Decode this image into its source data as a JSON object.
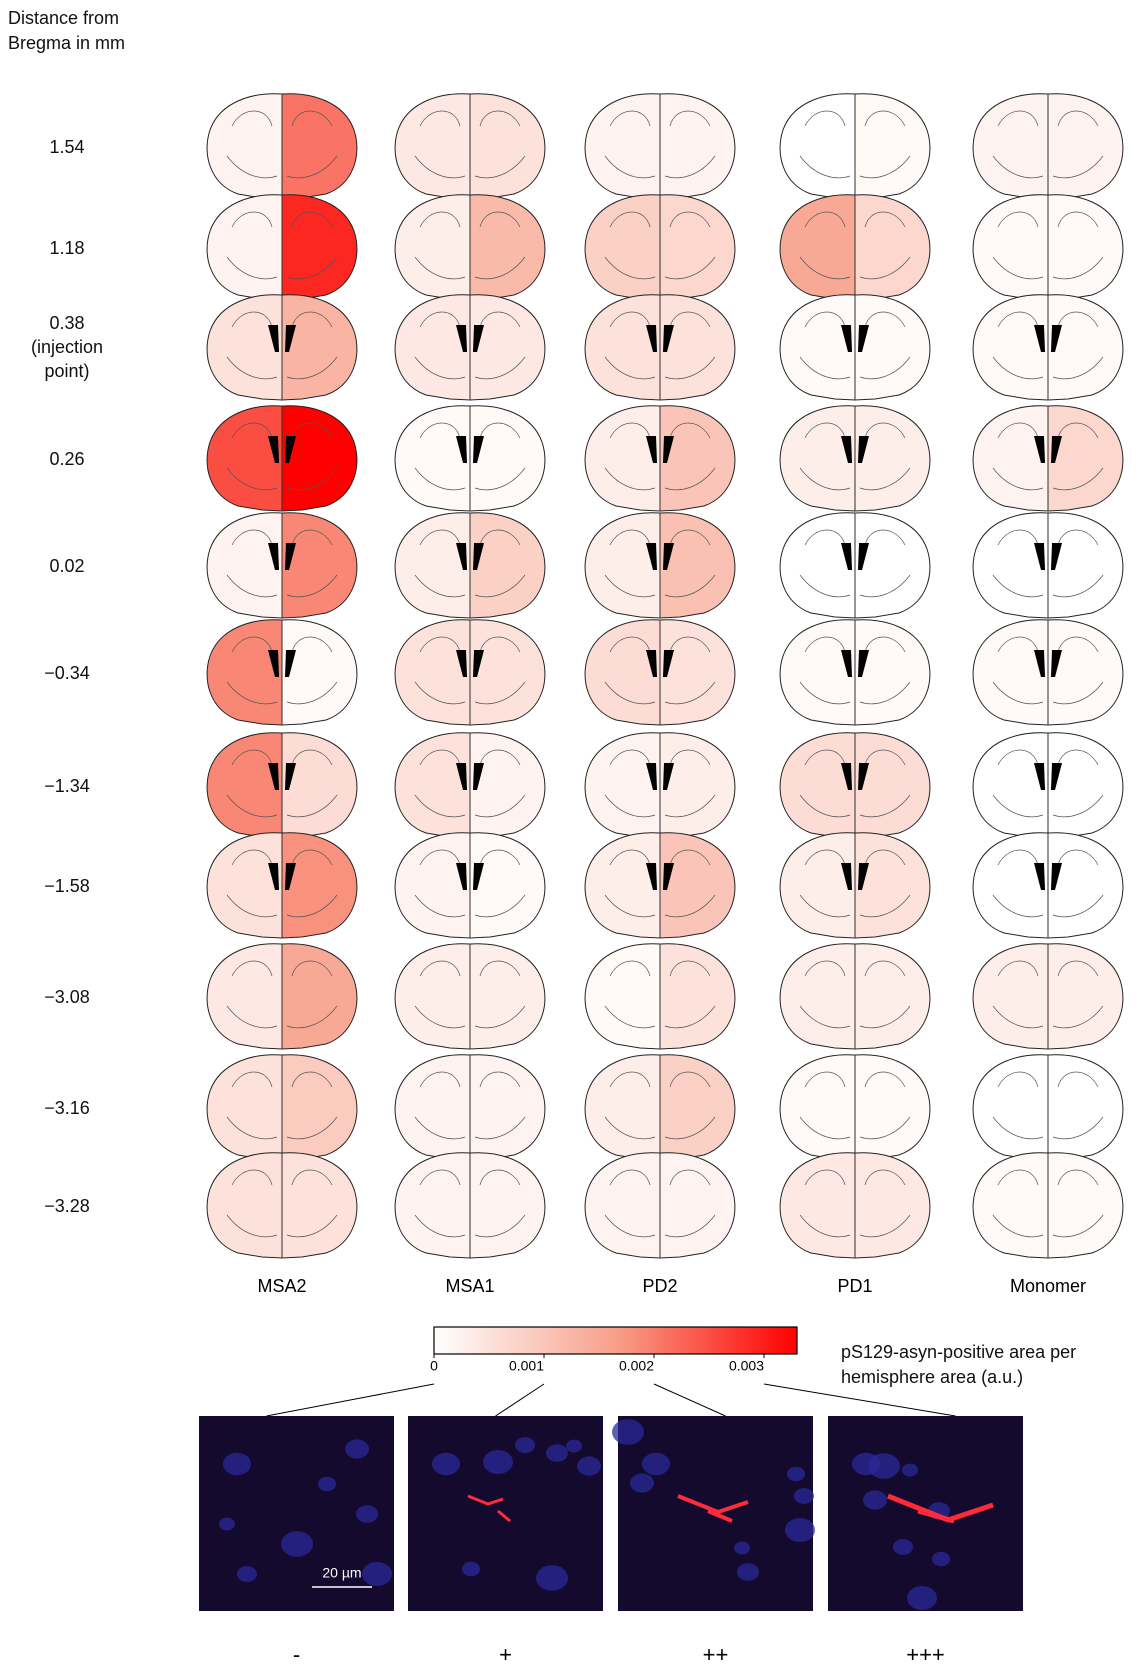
{
  "chart_data": {
    "type": "brain-heatmap",
    "row_axis_label": "Distance from Bregma in mm",
    "rows": [
      "1.54",
      "1.18",
      "0.38 (injection point)",
      "0.26",
      "0.02",
      "−0.34",
      "−1.34",
      "−1.58",
      "−3.08",
      "−3.16",
      "−3.28"
    ],
    "series": [
      {
        "name": "MSA2",
        "values": [
          [
            0.0002,
            0.0021
          ],
          [
            0.0002,
            0.0029
          ],
          [
            0.0005,
            0.0013
          ],
          [
            0.0025,
            0.0033
          ],
          [
            0.0002,
            0.0019
          ],
          [
            0.0019,
            0.0001
          ],
          [
            0.0019,
            0.0006
          ],
          [
            0.0005,
            0.0018
          ],
          [
            0.0004,
            0.0015
          ],
          [
            0.0005,
            0.0009
          ],
          [
            0.0005,
            0.0005
          ]
        ]
      },
      {
        "name": "MSA1",
        "values": [
          [
            0.0004,
            0.0005
          ],
          [
            0.0003,
            0.0012
          ],
          [
            0.0004,
            0.0004
          ],
          [
            0.0001,
            0.0001
          ],
          [
            0.0003,
            0.0008
          ],
          [
            0.0005,
            0.0005
          ],
          [
            0.0005,
            0.0002
          ],
          [
            0.0002,
            0.0001
          ],
          [
            0.0003,
            0.0003
          ],
          [
            0.0002,
            0.0002
          ],
          [
            0.0002,
            0.0002
          ]
        ]
      },
      {
        "name": "PD2",
        "values": [
          [
            0.0002,
            0.0002
          ],
          [
            0.0008,
            0.0007
          ],
          [
            0.0005,
            0.0005
          ],
          [
            0.0003,
            0.001
          ],
          [
            0.0003,
            0.0011
          ],
          [
            0.0006,
            0.0005
          ],
          [
            0.0002,
            0.0003
          ],
          [
            0.0003,
            0.001
          ],
          [
            0.0001,
            0.0005
          ],
          [
            0.0003,
            0.0008
          ],
          [
            0.0002,
            0.0002
          ]
        ]
      },
      {
        "name": "PD1",
        "values": [
          [
            0,
            0.0001
          ],
          [
            0.0015,
            0.0007
          ],
          [
            0.0001,
            0.0001
          ],
          [
            0.0003,
            0.0003
          ],
          [
            0,
            0
          ],
          [
            0.0001,
            0.0001
          ],
          [
            0.0006,
            0.0006
          ],
          [
            0.0003,
            0.0005
          ],
          [
            0.0003,
            0.0003
          ],
          [
            0.0001,
            0.0001
          ],
          [
            0.0004,
            0.0004
          ]
        ]
      },
      {
        "name": "Monomer",
        "values": [
          [
            0.0002,
            0.0002
          ],
          [
            0.0001,
            0.0001
          ],
          [
            0.0001,
            0.0001
          ],
          [
            0.0002,
            0.0007
          ],
          [
            0,
            0
          ],
          [
            0.0001,
            0.0001
          ],
          [
            0,
            0
          ],
          [
            0,
            0
          ],
          [
            0.0003,
            0.0003
          ],
          [
            0,
            0
          ],
          [
            0.0001,
            0.0001
          ]
        ]
      }
    ],
    "colormap": [
      "#ffffff",
      "#f7a08a",
      "#ff0000"
    ],
    "colorbar_label": "pS129-asyn-positive area per hemisphere area (a.u.)",
    "clim": [
      0,
      0.0033
    ],
    "cticks": [
      0,
      0.001,
      0.002,
      0.003
    ],
    "micrographs": {
      "labels": [
        "-",
        "+",
        "++",
        "+++"
      ],
      "scale_bar": "20 µm"
    }
  }
}
